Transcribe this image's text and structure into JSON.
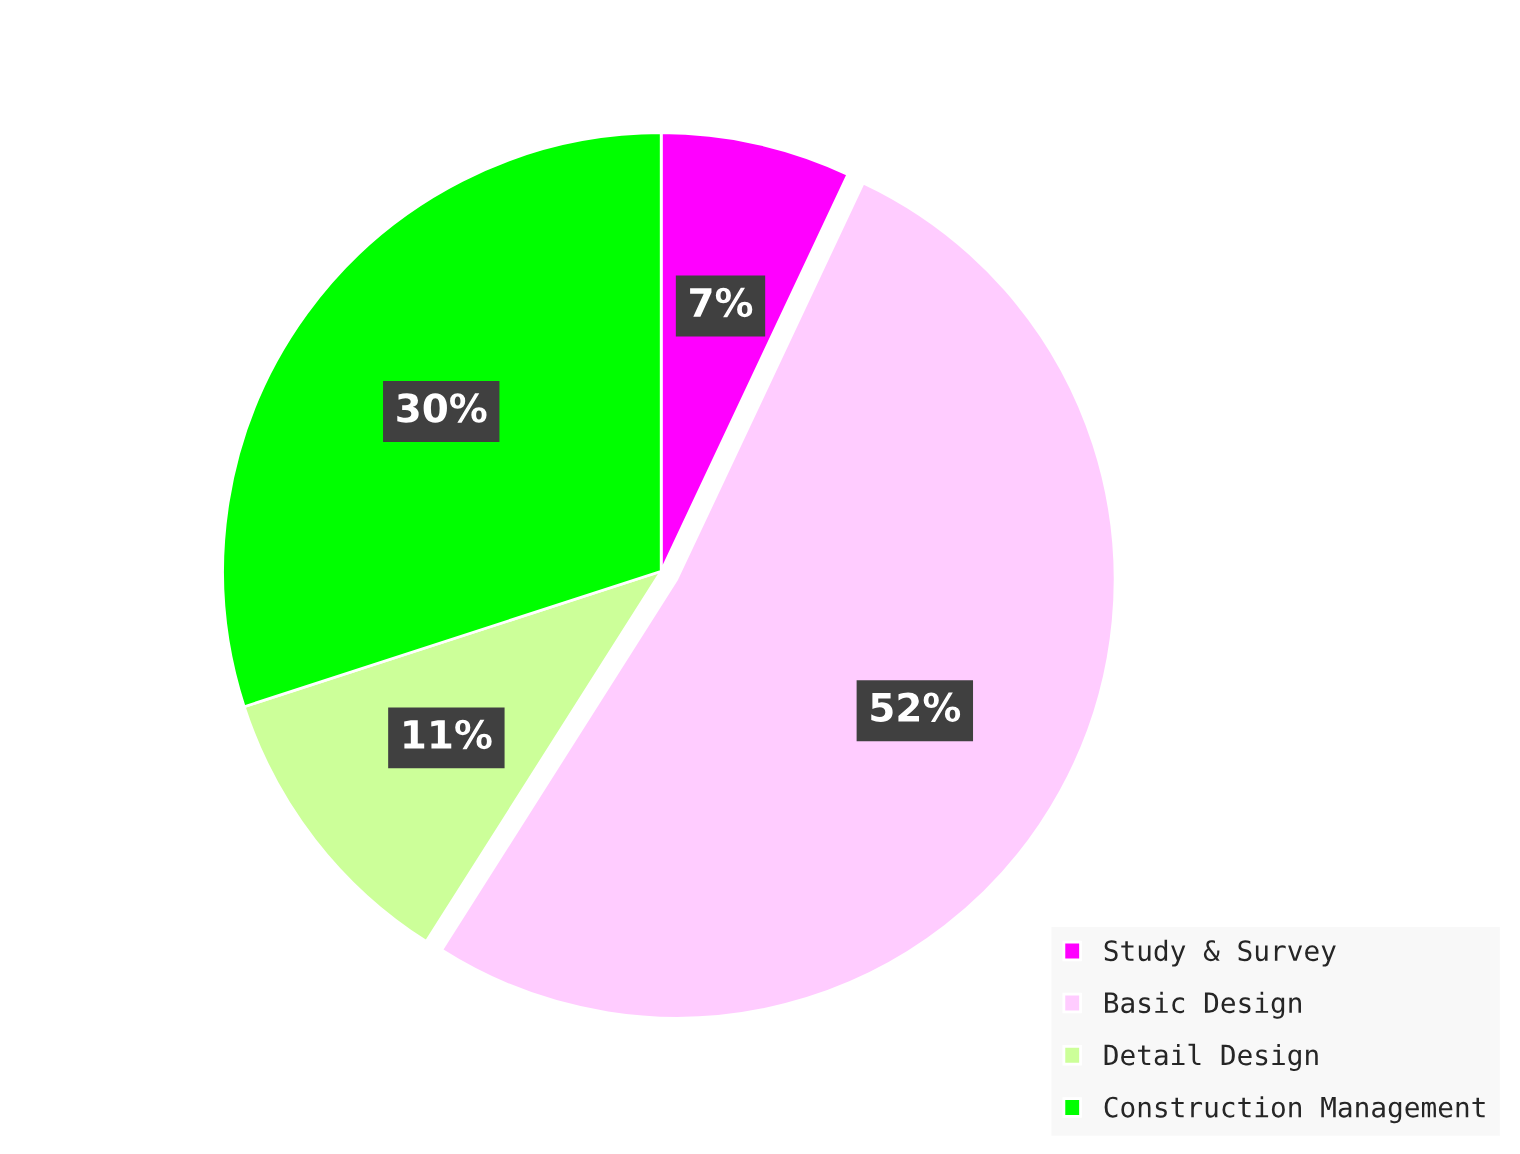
{
  "chart_data": {
    "type": "pie",
    "categories": [
      "Study & Survey",
      "Basic Design",
      "Detail Design",
      "Construction Management"
    ],
    "values": [
      7,
      52,
      11,
      30
    ],
    "colors": [
      "#ff00ff",
      "#ffccff",
      "#ccff99",
      "#00ff00"
    ],
    "value_labels": [
      "7%",
      "52%",
      "11%",
      "30%"
    ],
    "legend": "bottom right"
  }
}
